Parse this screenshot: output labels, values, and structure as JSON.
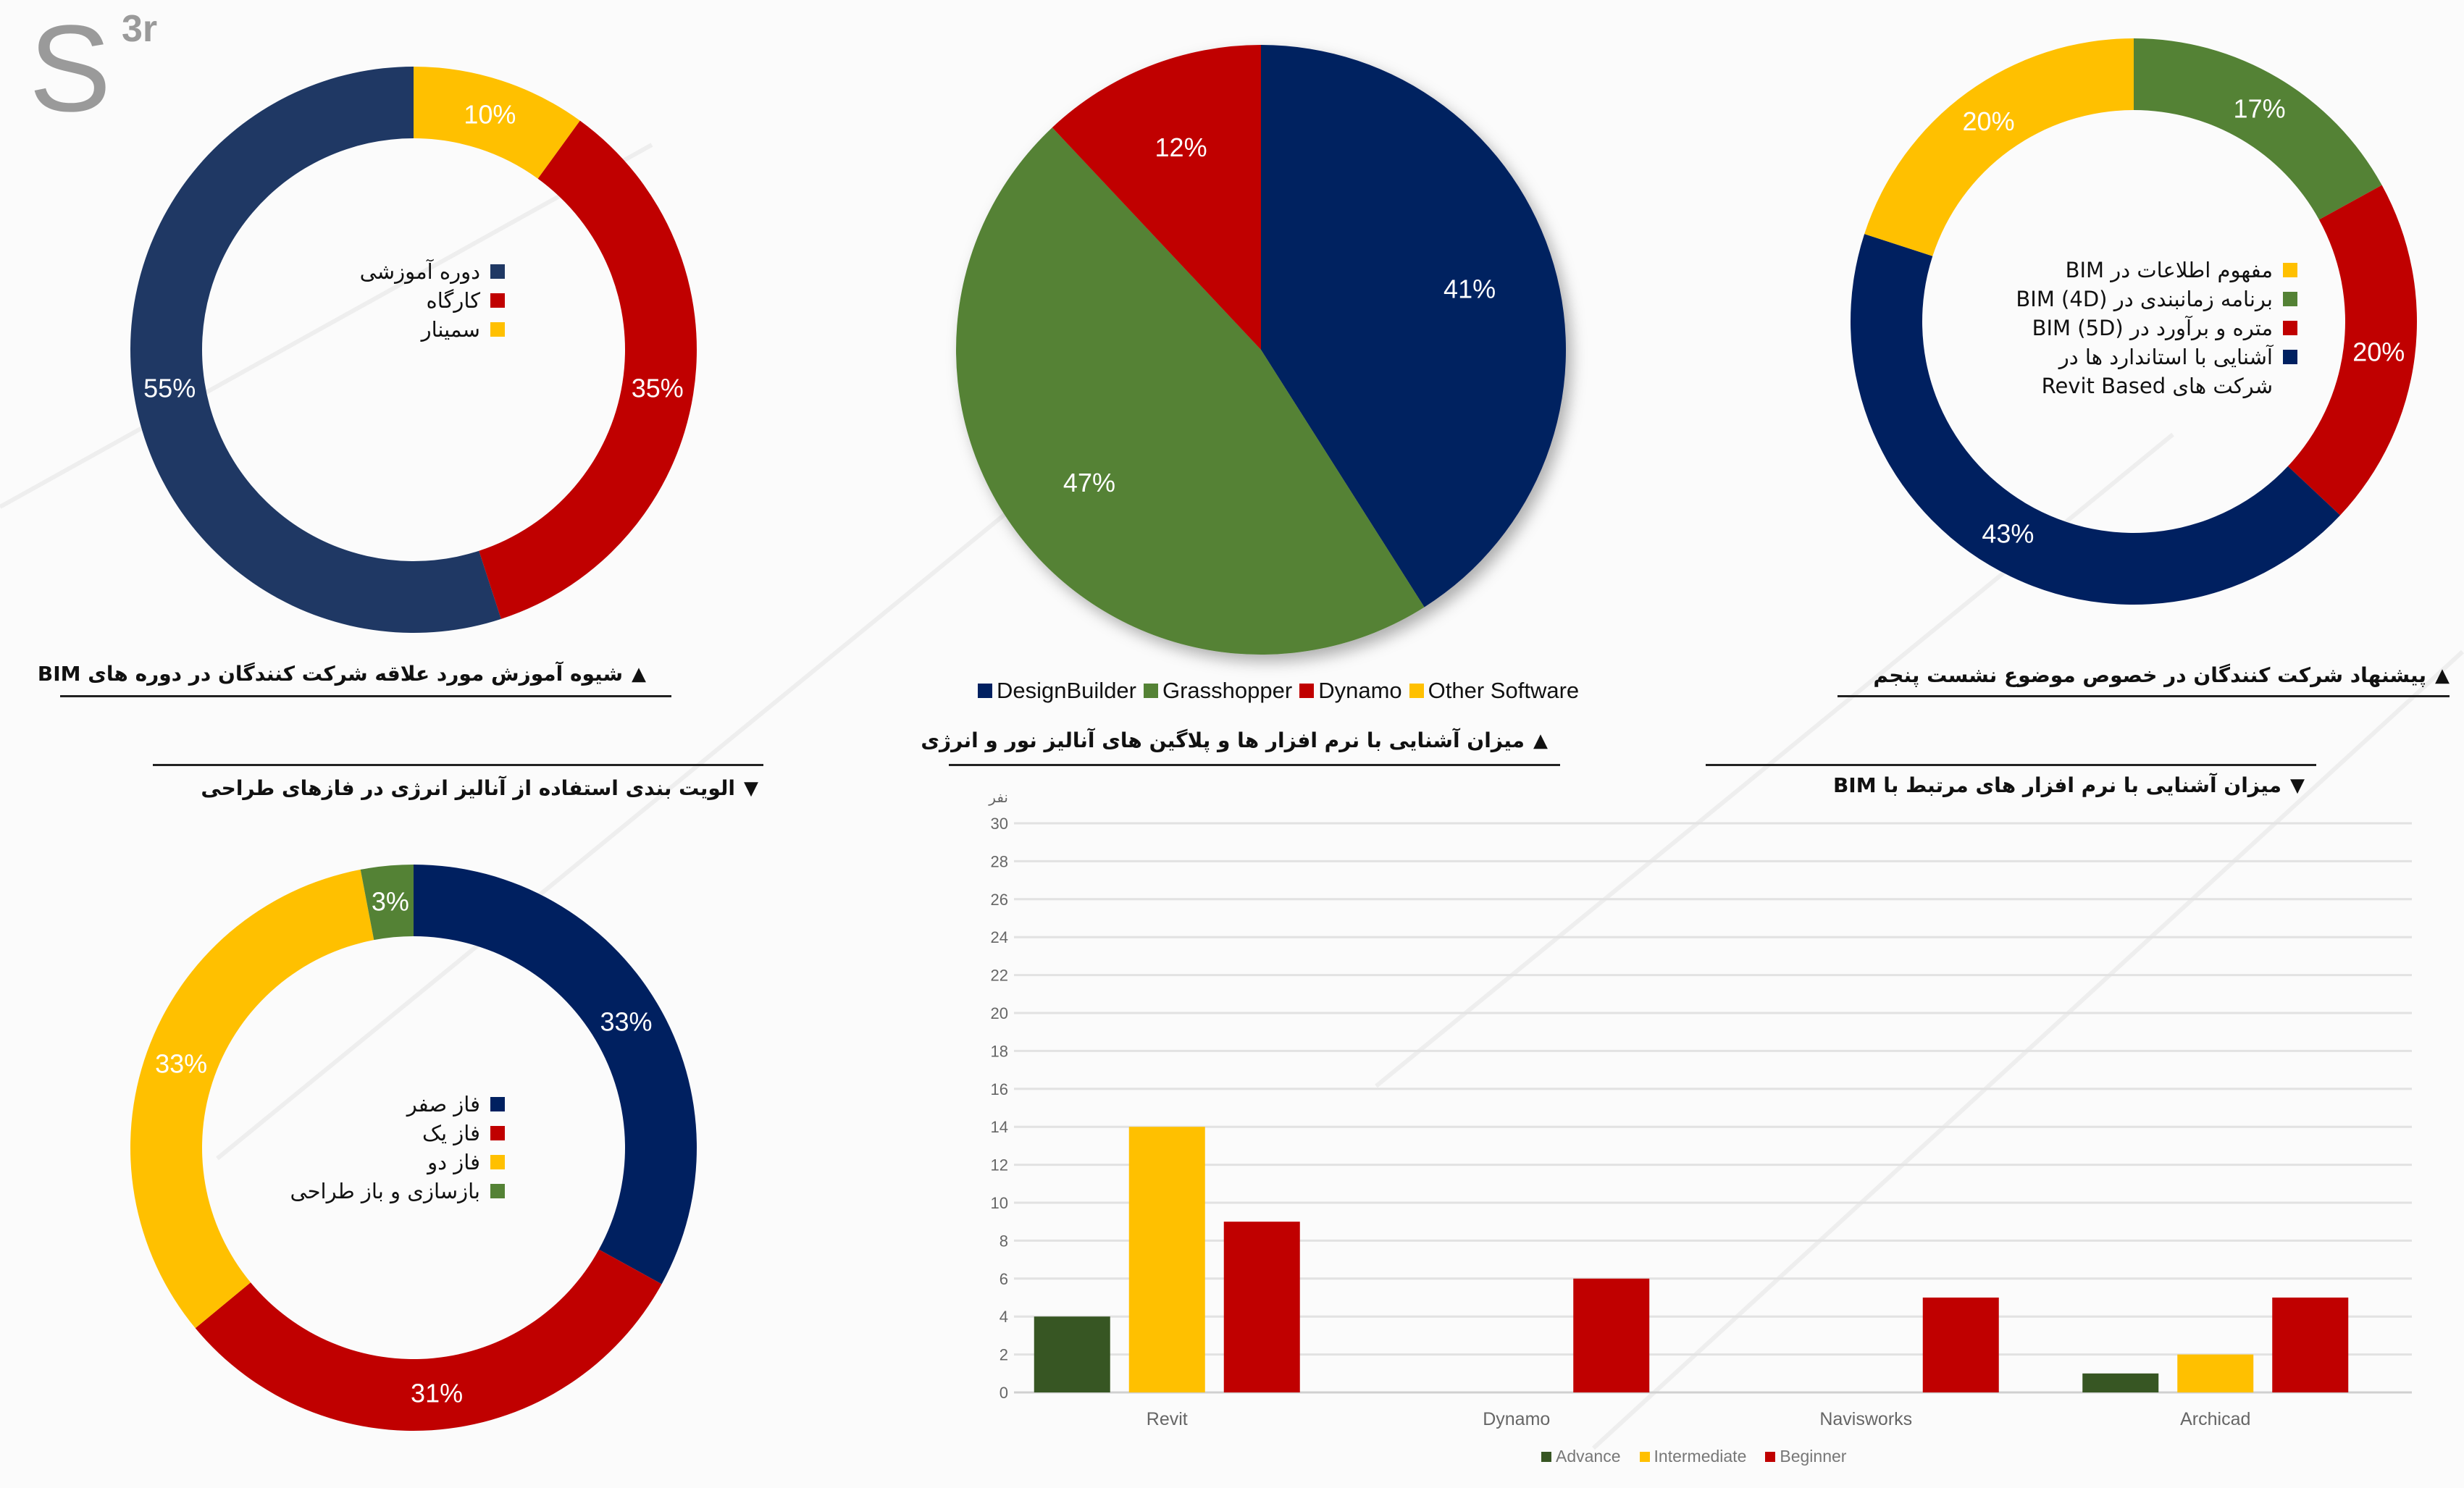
{
  "logo": {
    "main": "S",
    "sup": "3r"
  },
  "colors": {
    "navy": "#1f3864",
    "navy2": "#002060",
    "red": "#c00000",
    "yellow": "#ffc000",
    "green": "#548235",
    "darkgreen": "#375623"
  },
  "chart_data": [
    {
      "id": "training-method",
      "type": "pie",
      "variant": "donut",
      "title": "شیوه آموزش مورد علاقه شرکت کنندگان در دوره های BIM",
      "slices": [
        {
          "label": "سمینار",
          "value": 10,
          "display": "10%",
          "color": "#ffc000"
        },
        {
          "label": "کارگاه",
          "value": 35,
          "display": "35%",
          "color": "#c00000"
        },
        {
          "label": "دوره آموزشی",
          "value": 55,
          "display": "55%",
          "color": "#1f3864"
        }
      ],
      "legend_order": [
        2,
        1,
        0
      ]
    },
    {
      "id": "energy-software",
      "type": "pie",
      "title": "میزان آشنایی با نرم افزار ها و پلاگین های آنالیز نور و انرژی",
      "slices": [
        {
          "label": "DesignBuilder",
          "value": 41,
          "display": "41%",
          "color": "#002060"
        },
        {
          "label": "Grasshopper",
          "value": 47,
          "display": "47%",
          "color": "#548235"
        },
        {
          "label": "Dynamo",
          "value": 12,
          "display": "12%",
          "color": "#c00000"
        },
        {
          "label": "Other Software",
          "value": 0,
          "display": "",
          "color": "#ffc000"
        }
      ],
      "legend_order": [
        0,
        1,
        2,
        3
      ]
    },
    {
      "id": "fifth-session-topic",
      "type": "pie",
      "variant": "donut",
      "title": "پیشنهاد شرکت کنندگان در خصوص موضوع نشست پنجم",
      "slices": [
        {
          "label": "برنامه زمانبندی در BIM (4D)",
          "value": 17,
          "display": "17%",
          "color": "#548235"
        },
        {
          "label": "متره و برآورد در BIM (5D)",
          "value": 20,
          "display": "20%",
          "color": "#c00000"
        },
        {
          "label": "آشنایی با استاندارد ها در شرکت های Revit Based",
          "value": 43,
          "display": "43%",
          "color": "#002060"
        },
        {
          "label": "مفهوم اطلاعات در BIM",
          "value": 20,
          "display": "20%",
          "color": "#ffc000"
        }
      ],
      "legend_order": [
        3,
        0,
        1,
        2
      ]
    },
    {
      "id": "energy-analysis-priority",
      "type": "pie",
      "variant": "donut",
      "title": "الویت بندی استفاده از آنالیز انرژی در فازهای طراحی",
      "slices": [
        {
          "label": "فاز صفر",
          "value": 33,
          "display": "33%",
          "color": "#002060"
        },
        {
          "label": "فاز یک",
          "value": 31,
          "display": "31%",
          "color": "#c00000"
        },
        {
          "label": "فاز دو",
          "value": 33,
          "display": "33%",
          "color": "#ffc000"
        },
        {
          "label": "بازسازی و باز طراحی",
          "value": 3,
          "display": "3%",
          "color": "#548235"
        }
      ],
      "legend_order": [
        0,
        1,
        2,
        3
      ]
    },
    {
      "id": "bim-software",
      "type": "bar",
      "title": "میزان آشنایی با نرم افزار های مرتبط با BIM",
      "ylabel": "نفر",
      "ylim": [
        0,
        30
      ],
      "yticks": [
        "0",
        "2",
        "4",
        "6",
        "8",
        "10",
        "12",
        "14",
        "16",
        "18",
        "20",
        "22",
        "24",
        "26",
        "28",
        "30"
      ],
      "categories": [
        "Revit",
        "Dynamo",
        "Navisworks",
        "Archicad"
      ],
      "series": [
        {
          "name": "Advance",
          "color": "#375623",
          "values": [
            4,
            0,
            0,
            1
          ]
        },
        {
          "name": "Intermediate",
          "color": "#ffc000",
          "values": [
            14,
            0,
            0,
            2
          ]
        },
        {
          "name": "Beginner",
          "color": "#c00000",
          "values": [
            9,
            6,
            5,
            5
          ]
        }
      ],
      "grid": true,
      "legend": "bottom"
    }
  ],
  "titles": {
    "t1": "شیوه آموزش مورد علاقه شرکت کنندگان در دوره های BIM",
    "t2": "میزان آشنایی با نرم افزار ها و پلاگین های آنالیز نور و انرژی",
    "t3": "پیشنهاد شرکت کنندگان در خصوص موضوع نشست پنجم",
    "t4": "میزان آشنایی با نرم افزار های مرتبط با BIM",
    "t5": "الویت بندی استفاده از آنالیز انرژی در فازهای طراحی"
  },
  "legend3_lines": {
    "l1": "مفهوم اطلاعات در BIM",
    "l2": "برنامه زمانبندی در BIM (4D)",
    "l3": "متره و برآورد در BIM (5D)",
    "l4": "آشنایی با استاندارد ها در شرکت های Revit Based"
  }
}
